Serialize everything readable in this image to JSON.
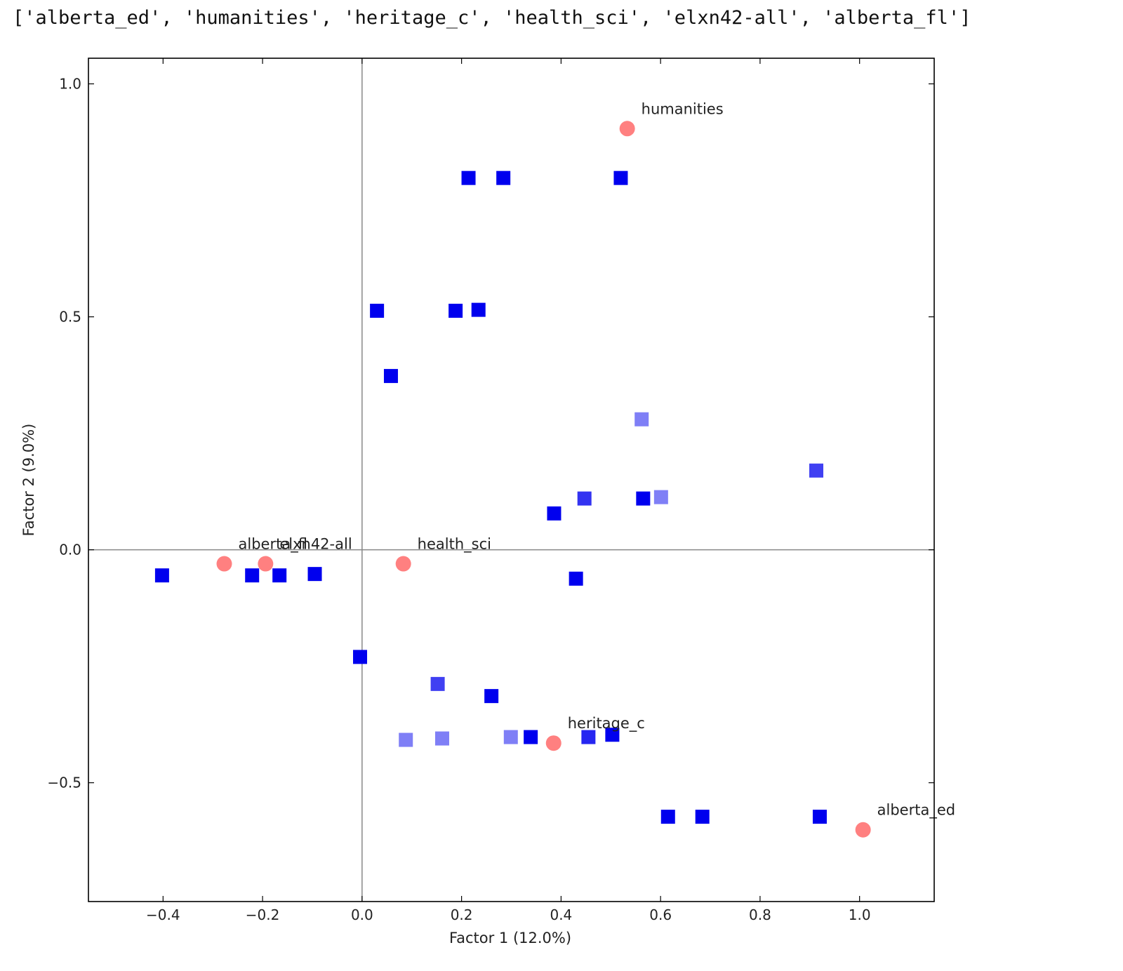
{
  "output_text": "['alberta_ed', 'humanities', 'heritage_c', 'health_sci', 'elxn42-all', 'alberta_fl']",
  "chart_data": {
    "type": "scatter",
    "xlabel": "Factor 1 (12.0%)",
    "ylabel": "Factor 2 (9.0%)",
    "xlim": [
      -0.55,
      1.15
    ],
    "ylim": [
      -0.755,
      1.055
    ],
    "xticks": [
      -0.4,
      -0.2,
      0.0,
      0.2,
      0.4,
      0.6,
      0.8,
      1.0
    ],
    "xtick_labels": [
      "−0.4",
      "−0.2",
      "0.0",
      "0.2",
      "0.4",
      "0.6",
      "0.8",
      "1.0"
    ],
    "yticks": [
      -0.5,
      0.0,
      0.5,
      1.0
    ],
    "ytick_labels": [
      "−0.5",
      "0.0",
      "0.5",
      "1.0"
    ],
    "grid": false,
    "reference_lines": {
      "x": 0,
      "y": 0,
      "color": "#888888"
    },
    "colors": {
      "label_points": "#ff8080",
      "square_points": "#0000ee"
    },
    "label_points": [
      {
        "label": "humanities",
        "x": 0.533,
        "y": 0.904
      },
      {
        "label": "alberta_fl",
        "x": -0.277,
        "y": -0.03
      },
      {
        "label": "elxn42-all",
        "x": -0.194,
        "y": -0.03
      },
      {
        "label": "health_sci",
        "x": 0.083,
        "y": -0.03
      },
      {
        "label": "heritage_c",
        "x": 0.385,
        "y": -0.415
      },
      {
        "label": "alberta_ed",
        "x": 1.007,
        "y": -0.601
      }
    ],
    "square_points": [
      {
        "x": 0.214,
        "y": 0.798,
        "alpha": 1.0
      },
      {
        "x": 0.284,
        "y": 0.798,
        "alpha": 1.0
      },
      {
        "x": 0.52,
        "y": 0.798,
        "alpha": 1.0
      },
      {
        "x": 0.03,
        "y": 0.513,
        "alpha": 1.0
      },
      {
        "x": 0.188,
        "y": 0.513,
        "alpha": 1.0
      },
      {
        "x": 0.234,
        "y": 0.515,
        "alpha": 1.0
      },
      {
        "x": 0.058,
        "y": 0.373,
        "alpha": 1.0
      },
      {
        "x": 0.562,
        "y": 0.28,
        "alpha": 0.5
      },
      {
        "x": 0.913,
        "y": 0.17,
        "alpha": 0.75
      },
      {
        "x": 0.447,
        "y": 0.11,
        "alpha": 0.8
      },
      {
        "x": 0.565,
        "y": 0.11,
        "alpha": 1.0
      },
      {
        "x": 0.601,
        "y": 0.113,
        "alpha": 0.5
      },
      {
        "x": 0.386,
        "y": 0.078,
        "alpha": 1.0
      },
      {
        "x": 0.43,
        "y": -0.062,
        "alpha": 1.0
      },
      {
        "x": -0.402,
        "y": -0.055,
        "alpha": 1.0
      },
      {
        "x": -0.221,
        "y": -0.055,
        "alpha": 1.0
      },
      {
        "x": -0.166,
        "y": -0.055,
        "alpha": 1.0
      },
      {
        "x": -0.095,
        "y": -0.052,
        "alpha": 1.0
      },
      {
        "x": -0.004,
        "y": -0.23,
        "alpha": 1.0
      },
      {
        "x": 0.152,
        "y": -0.288,
        "alpha": 0.75
      },
      {
        "x": 0.26,
        "y": -0.314,
        "alpha": 1.0
      },
      {
        "x": 0.088,
        "y": -0.408,
        "alpha": 0.5
      },
      {
        "x": 0.161,
        "y": -0.405,
        "alpha": 0.5
      },
      {
        "x": 0.299,
        "y": -0.402,
        "alpha": 0.5
      },
      {
        "x": 0.339,
        "y": -0.402,
        "alpha": 1.0
      },
      {
        "x": 0.455,
        "y": -0.402,
        "alpha": 0.85
      },
      {
        "x": 0.503,
        "y": -0.397,
        "alpha": 1.0
      },
      {
        "x": 0.615,
        "y": -0.573,
        "alpha": 1.0
      },
      {
        "x": 0.684,
        "y": -0.573,
        "alpha": 1.0
      },
      {
        "x": 0.92,
        "y": -0.573,
        "alpha": 1.0
      }
    ]
  }
}
